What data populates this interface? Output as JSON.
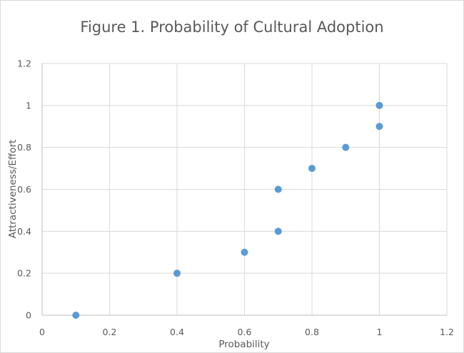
{
  "chart_data": {
    "type": "scatter",
    "title": "Figure 1. Probability of Cultural Adoption",
    "xlabel": "Probability",
    "ylabel": "Attractiveness/Effort",
    "xlim": [
      0,
      1.2
    ],
    "ylim": [
      0,
      1.2
    ],
    "x_ticks": [
      "0",
      "0.2",
      "0.4",
      "0.6",
      "0.8",
      "1",
      "1.2"
    ],
    "y_ticks": [
      "0",
      "0.2",
      "0.4",
      "0.6",
      "0.8",
      "1",
      "1.2"
    ],
    "grid": true,
    "legend": "none",
    "marker_color": "#5b9bd5",
    "points": [
      {
        "x": 0.1,
        "y": 0.0
      },
      {
        "x": 0.4,
        "y": 0.2
      },
      {
        "x": 0.6,
        "y": 0.3
      },
      {
        "x": 0.7,
        "y": 0.4
      },
      {
        "x": 0.7,
        "y": 0.6
      },
      {
        "x": 0.8,
        "y": 0.7
      },
      {
        "x": 0.9,
        "y": 0.8
      },
      {
        "x": 1.0,
        "y": 0.9
      },
      {
        "x": 1.0,
        "y": 1.0
      }
    ]
  }
}
